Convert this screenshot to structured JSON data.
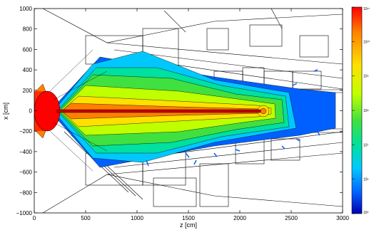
{
  "chart_data": {
    "type": "heatmap",
    "title": "",
    "xlabel": "z [cm]",
    "ylabel": "x [cm]",
    "xlim": [
      0,
      3000
    ],
    "ylim": [
      -1000,
      1000
    ],
    "x_ticks": [
      "0",
      "500",
      "1000",
      "1500",
      "2000",
      "2500",
      "3000"
    ],
    "y_ticks": [
      "1000",
      "800",
      "600",
      "400",
      "200",
      "0",
      "−200",
      "−400",
      "−600",
      "−800",
      "−1000"
    ],
    "colorbar": {
      "scale": "log",
      "range": [
        100000,
        100000000000
      ],
      "tick_labels": [
        "10¹¹",
        "10¹⁰",
        "10⁹",
        "10⁸",
        "10⁷",
        "10⁶",
        "10⁵"
      ],
      "colors": [
        "#ff0000",
        "#ff8000",
        "#ffe000",
        "#c0ff00",
        "#40e040",
        "#00e0a0",
        "#00c8ff",
        "#0060ff",
        "#0000b0"
      ]
    },
    "grid": false,
    "legend": "right"
  }
}
